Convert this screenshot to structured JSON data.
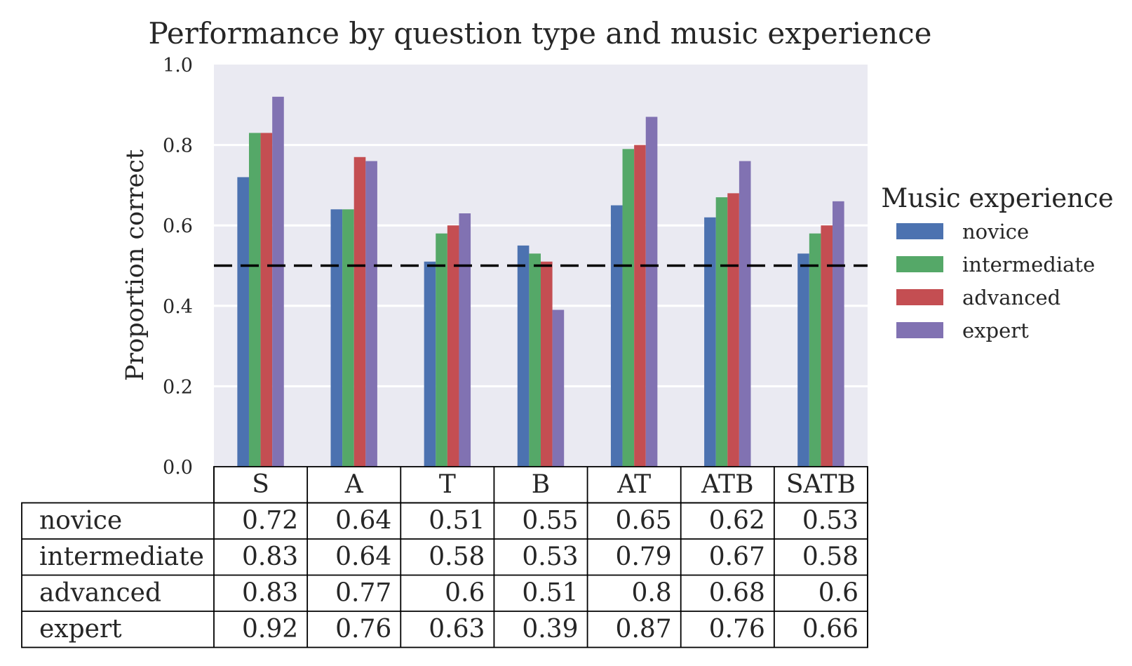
{
  "chart_data": {
    "type": "bar",
    "title": "Performance by question type and music experience",
    "xlabel": "",
    "ylabel": "Proportion correct",
    "ylim": [
      0.0,
      1.0
    ],
    "yticks": [
      {
        "value": 0.0,
        "label": "0.0"
      },
      {
        "value": 0.2,
        "label": "0.2"
      },
      {
        "value": 0.4,
        "label": "0.4"
      },
      {
        "value": 0.6,
        "label": "0.6"
      },
      {
        "value": 0.8,
        "label": "0.8"
      },
      {
        "value": 1.0,
        "label": "1.0"
      }
    ],
    "grid": true,
    "reference_line": {
      "value": 0.5,
      "style": "dashed",
      "color": "#000000"
    },
    "categories": [
      "S",
      "A",
      "T",
      "B",
      "AT",
      "ATB",
      "SATB"
    ],
    "series": [
      {
        "name": "novice",
        "color": "#4c72b0",
        "values": [
          0.72,
          0.64,
          0.51,
          0.55,
          0.65,
          0.62,
          0.53
        ],
        "labels": [
          "0.72",
          "0.64",
          "0.51",
          "0.55",
          "0.65",
          "0.62",
          "0.53"
        ]
      },
      {
        "name": "intermediate",
        "color": "#55a868",
        "values": [
          0.83,
          0.64,
          0.58,
          0.53,
          0.79,
          0.67,
          0.58
        ],
        "labels": [
          "0.83",
          "0.64",
          "0.58",
          "0.53",
          "0.79",
          "0.67",
          "0.58"
        ]
      },
      {
        "name": "advanced",
        "color": "#c44e52",
        "values": [
          0.83,
          0.77,
          0.6,
          0.51,
          0.8,
          0.68,
          0.6
        ],
        "labels": [
          "0.83",
          "0.77",
          "0.6",
          "0.51",
          "0.8",
          "0.68",
          "0.6"
        ]
      },
      {
        "name": "expert",
        "color": "#8172b2",
        "values": [
          0.92,
          0.76,
          0.63,
          0.39,
          0.87,
          0.76,
          0.66
        ],
        "labels": [
          "0.92",
          "0.76",
          "0.63",
          "0.39",
          "0.87",
          "0.76",
          "0.66"
        ]
      }
    ],
    "legend": {
      "title": "Music experience",
      "position": "right"
    },
    "table": {
      "position": "bottom"
    },
    "colors": {
      "plot_background": "#eaeaf2",
      "grid": "#ffffff",
      "text": "#262626",
      "table_border": "#000000"
    }
  }
}
